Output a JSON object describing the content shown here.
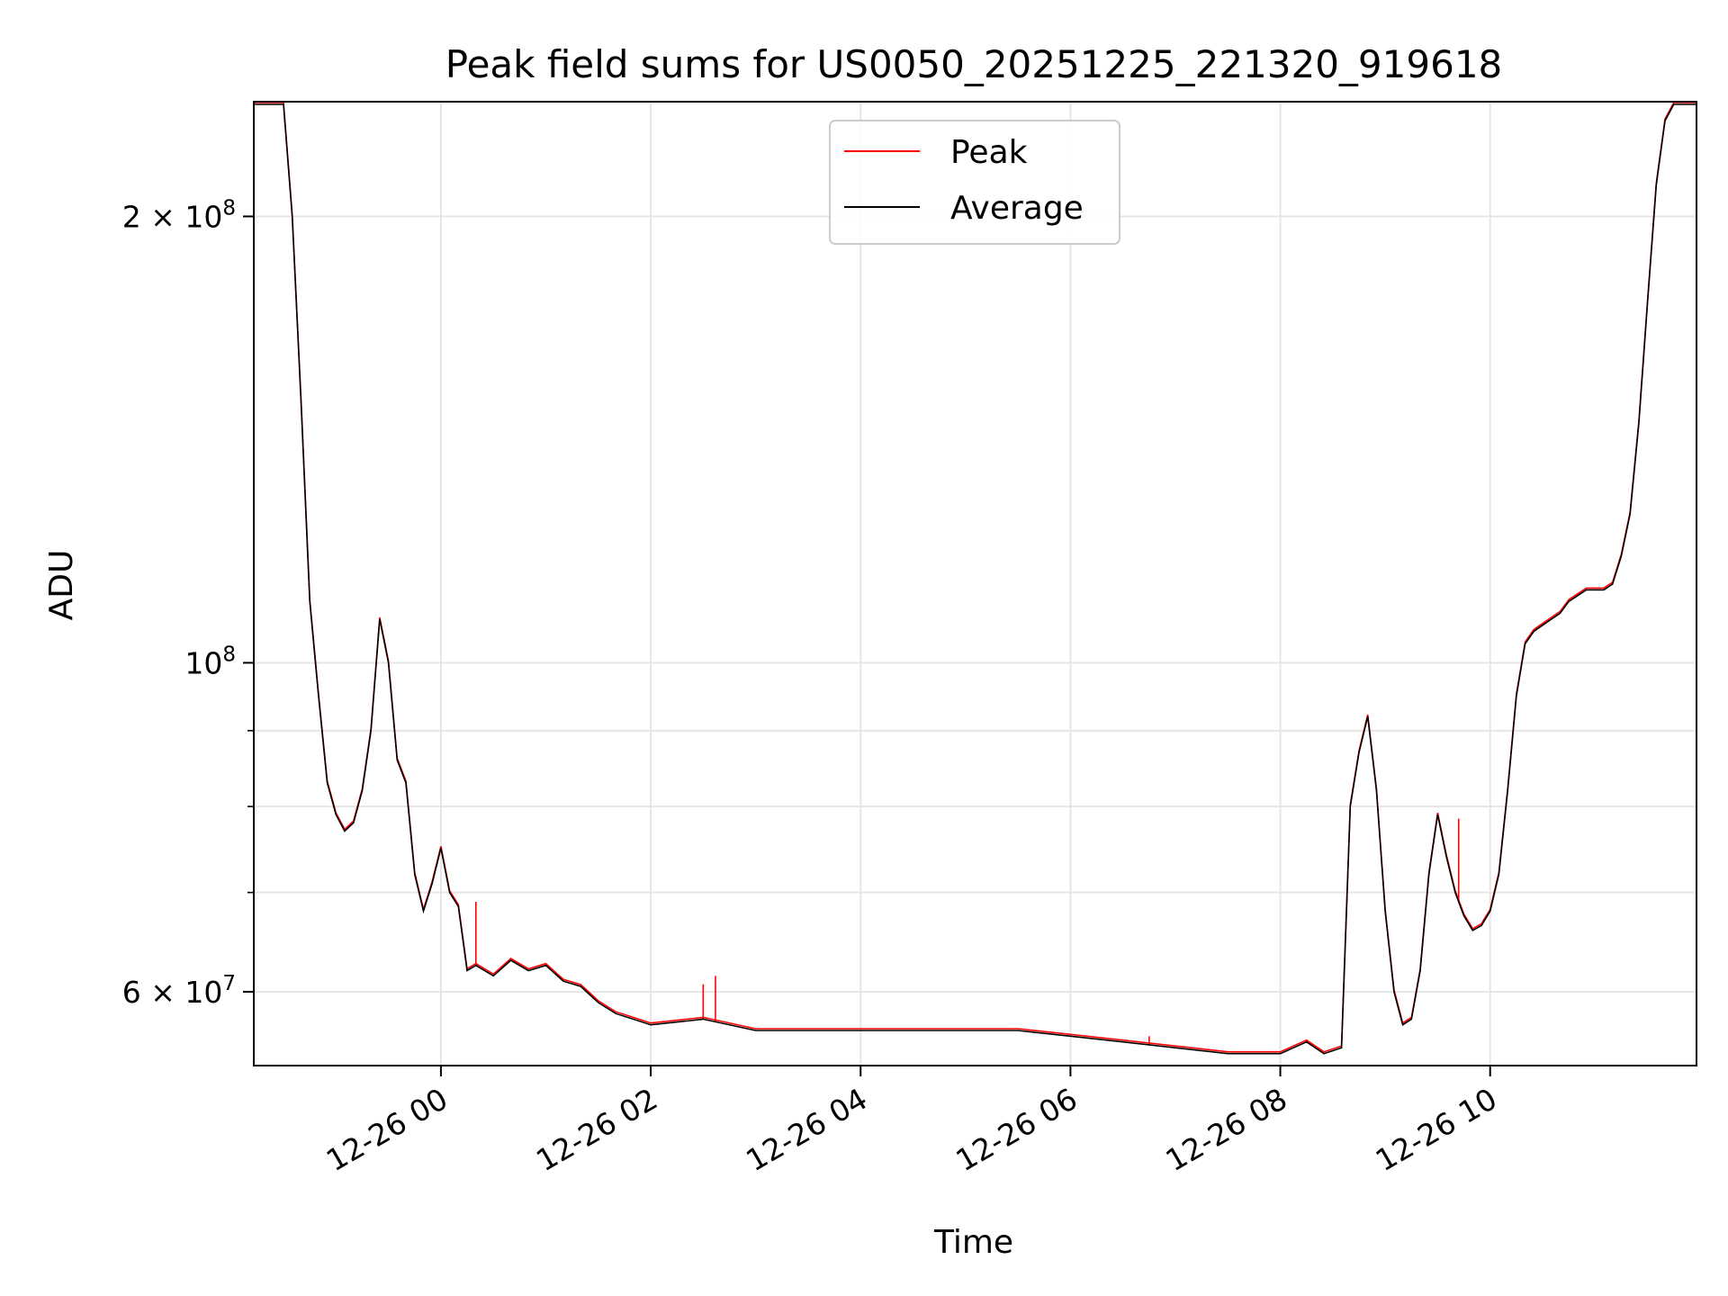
{
  "chart_data": {
    "type": "line",
    "title": "Peak field sums for US0050_20251225_221320_919618",
    "xlabel": "Time",
    "ylabel": "ADU",
    "y_scale": "log",
    "grid": true,
    "legend_position": "upper-center",
    "xlim": [
      "2025-12-25 22:13",
      "2025-12-26 11:58"
    ],
    "ylim": [
      53500000,
      239000000
    ],
    "x_ticks": [
      {
        "value": "2025-12-26 00:00",
        "label": "12-26 00"
      },
      {
        "value": "2025-12-26 02:00",
        "label": "12-26 02"
      },
      {
        "value": "2025-12-26 04:00",
        "label": "12-26 04"
      },
      {
        "value": "2025-12-26 06:00",
        "label": "12-26 06"
      },
      {
        "value": "2025-12-26 08:00",
        "label": "12-26 08"
      },
      {
        "value": "2025-12-26 10:00",
        "label": "12-26 10"
      }
    ],
    "y_major_ticks": [
      {
        "value": 60000000,
        "mantissa": "6",
        "exponent": "7"
      },
      {
        "value": 100000000,
        "mantissa": "",
        "exponent": "8"
      },
      {
        "value": 200000000,
        "mantissa": "2",
        "exponent": "8"
      }
    ],
    "y_minor_ticks": [
      70000000,
      80000000,
      90000000
    ],
    "series": [
      {
        "name": "Peak",
        "color": "#ff0000",
        "spikes": [
          {
            "x": "2025-12-26 00:20",
            "y": 69000000
          },
          {
            "x": "2025-12-26 02:30",
            "y": 60700000
          },
          {
            "x": "2025-12-26 02:37",
            "y": 61500000
          },
          {
            "x": "2025-12-26 06:45",
            "y": 56000000
          },
          {
            "x": "2025-12-26 09:42",
            "y": 78500000
          },
          {
            "x": "2025-12-26 10:01",
            "y": 68800000
          }
        ]
      },
      {
        "name": "Average",
        "color": "#000000",
        "x": [
          "2025-12-25 22:13",
          "2025-12-25 22:30",
          "2025-12-25 22:35",
          "2025-12-25 22:40",
          "2025-12-25 22:45",
          "2025-12-25 22:50",
          "2025-12-25 22:55",
          "2025-12-25 23:00",
          "2025-12-25 23:05",
          "2025-12-25 23:10",
          "2025-12-25 23:15",
          "2025-12-25 23:20",
          "2025-12-25 23:25",
          "2025-12-25 23:30",
          "2025-12-25 23:35",
          "2025-12-25 23:40",
          "2025-12-25 23:45",
          "2025-12-25 23:50",
          "2025-12-25 23:55",
          "2025-12-26 00:00",
          "2025-12-26 00:05",
          "2025-12-26 00:10",
          "2025-12-26 00:15",
          "2025-12-26 00:20",
          "2025-12-26 00:30",
          "2025-12-26 00:40",
          "2025-12-26 00:50",
          "2025-12-26 01:00",
          "2025-12-26 01:10",
          "2025-12-26 01:20",
          "2025-12-26 01:30",
          "2025-12-26 01:40",
          "2025-12-26 01:50",
          "2025-12-26 02:00",
          "2025-12-26 02:30",
          "2025-12-26 03:00",
          "2025-12-26 03:30",
          "2025-12-26 04:00",
          "2025-12-26 04:30",
          "2025-12-26 05:00",
          "2025-12-26 05:30",
          "2025-12-26 06:00",
          "2025-12-26 06:30",
          "2025-12-26 07:00",
          "2025-12-26 07:30",
          "2025-12-26 07:45",
          "2025-12-26 08:00",
          "2025-12-26 08:15",
          "2025-12-26 08:25",
          "2025-12-26 08:35",
          "2025-12-26 08:40",
          "2025-12-26 08:45",
          "2025-12-26 08:50",
          "2025-12-26 08:55",
          "2025-12-26 09:00",
          "2025-12-26 09:05",
          "2025-12-26 09:10",
          "2025-12-26 09:15",
          "2025-12-26 09:20",
          "2025-12-26 09:25",
          "2025-12-26 09:30",
          "2025-12-26 09:35",
          "2025-12-26 09:40",
          "2025-12-26 09:45",
          "2025-12-26 09:50",
          "2025-12-26 09:55",
          "2025-12-26 10:00",
          "2025-12-26 10:05",
          "2025-12-26 10:10",
          "2025-12-26 10:15",
          "2025-12-26 10:20",
          "2025-12-26 10:25",
          "2025-12-26 10:30",
          "2025-12-26 10:35",
          "2025-12-26 10:40",
          "2025-12-26 10:45",
          "2025-12-26 10:50",
          "2025-12-26 10:55",
          "2025-12-26 11:00",
          "2025-12-26 11:05",
          "2025-12-26 11:10",
          "2025-12-26 11:15",
          "2025-12-26 11:20",
          "2025-12-26 11:25",
          "2025-12-26 11:30",
          "2025-12-26 11:35",
          "2025-12-26 11:40",
          "2025-12-26 11:45",
          "2025-12-26 11:50",
          "2025-12-26 11:58"
        ],
        "values": [
          238000000,
          238000000,
          200000000,
          150000000,
          110000000,
          95000000,
          83000000,
          79000000,
          77000000,
          78000000,
          82000000,
          90000000,
          107000000,
          100000000,
          86000000,
          83000000,
          72000000,
          68000000,
          71000000,
          75000000,
          70000000,
          68500000,
          62000000,
          62500000,
          61500000,
          63000000,
          62000000,
          62500000,
          61000000,
          60500000,
          59000000,
          58000000,
          57500000,
          57000000,
          57500000,
          56500000,
          56500000,
          56500000,
          56500000,
          56500000,
          56500000,
          56000000,
          55500000,
          55000000,
          54500000,
          54500000,
          54500000,
          55500000,
          54500000,
          55000000,
          80000000,
          87000000,
          92000000,
          82000000,
          68000000,
          60000000,
          57000000,
          57500000,
          62000000,
          72000000,
          79000000,
          74000000,
          70000000,
          67500000,
          66000000,
          66500000,
          68000000,
          72000000,
          82000000,
          95000000,
          103000000,
          105000000,
          106000000,
          107000000,
          108000000,
          110000000,
          111000000,
          112000000,
          112000000,
          112000000,
          113000000,
          118000000,
          126000000,
          145000000,
          175000000,
          210000000,
          232000000,
          238000000,
          238000000,
          238000000
        ]
      }
    ]
  }
}
